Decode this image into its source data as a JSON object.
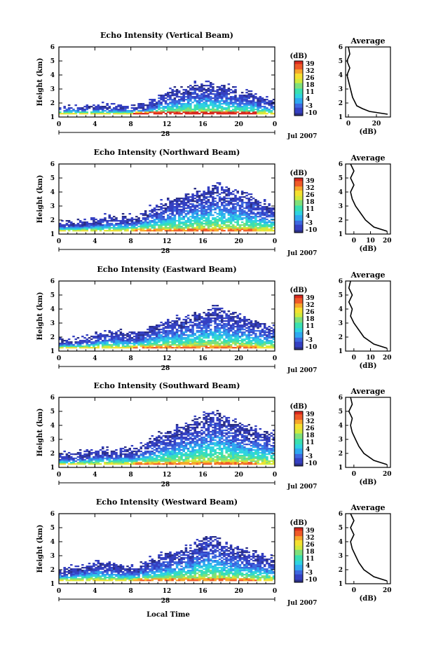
{
  "figure": {
    "xlabel": "Local Time",
    "colorbar_label": "(dB)",
    "colorbar_ticks": [
      "39",
      "32",
      "26",
      "18",
      "11",
      "4",
      "-3",
      "-10"
    ],
    "colorbar_range": [
      -10,
      39
    ],
    "average_title": "Average",
    "average_xlabel": "(dB)",
    "height_label": "Height (km)",
    "date_label": "Jul 2007",
    "day_label": "28",
    "x_ticks": [
      "0",
      "4",
      "8",
      "12",
      "16",
      "20",
      "0"
    ],
    "y_ticks": [
      "1",
      "2",
      "3",
      "4",
      "5",
      "6"
    ],
    "palette": [
      "#2b2f86",
      "#3540c2",
      "#3d68e0",
      "#2fa8f0",
      "#2fd3e0",
      "#3ae0b0",
      "#7fe07a",
      "#d0ea3c",
      "#f5e030",
      "#f7a62a",
      "#ef5a28",
      "#d8281e"
    ]
  },
  "chart_data": [
    {
      "type": "heatmap",
      "title": "Echo Intensity (Vertical Beam)",
      "xlabel": "Local Time",
      "ylabel": "Height (km)",
      "xlim": [
        0,
        24
      ],
      "ylim": [
        1,
        6
      ],
      "envelope_top_km": [
        1.3,
        1.4,
        1.5,
        1.5,
        1.6,
        1.6,
        1.5,
        1.4,
        1.5,
        1.7,
        2.0,
        2.4,
        2.7,
        2.8,
        3.0,
        3.2,
        3.2,
        3.0,
        3.0,
        2.8,
        2.6,
        2.5,
        2.2,
        2.0,
        2.0
      ],
      "peak_dB": 39,
      "average_profile": {
        "title": "Average",
        "xlabel": "(dB)",
        "xticks": [
          "0",
          "20"
        ],
        "xlim": [
          -2,
          30
        ],
        "height_km": [
          1.2,
          1.4,
          1.6,
          1.8,
          2.0,
          2.4,
          2.8,
          3.2,
          3.6,
          4.0,
          4.5,
          5.0,
          5.5,
          6.0
        ],
        "dB": [
          28,
          15,
          10,
          6,
          5,
          3,
          2,
          1,
          0,
          -1,
          1,
          -1,
          1,
          0
        ]
      }
    },
    {
      "type": "heatmap",
      "title": "Echo Intensity (Northward Beam)",
      "xlabel": "Local Time",
      "ylabel": "Height (km)",
      "xlim": [
        0,
        24
      ],
      "ylim": [
        1,
        6
      ],
      "envelope_top_km": [
        1.6,
        1.7,
        1.7,
        1.8,
        1.9,
        2.0,
        2.0,
        2.0,
        2.1,
        2.4,
        2.7,
        3.0,
        3.2,
        3.4,
        3.6,
        3.8,
        4.0,
        4.2,
        4.0,
        3.8,
        3.6,
        3.4,
        3.0,
        2.8,
        2.6
      ],
      "peak_dB": 26,
      "average_profile": {
        "title": "Average",
        "xlabel": "(dB)",
        "xticks": [
          "0",
          "10",
          "20"
        ],
        "xlim": [
          -5,
          22
        ],
        "height_km": [
          1.2,
          1.5,
          2.0,
          2.5,
          3.0,
          3.5,
          4.0,
          4.5,
          5.0,
          5.5,
          6.0
        ],
        "dB": [
          20,
          12,
          7,
          4,
          1,
          -1,
          -2,
          0,
          -2,
          0,
          -2
        ]
      }
    },
    {
      "type": "heatmap",
      "title": "Echo Intensity (Eastward Beam)",
      "xlabel": "Local Time",
      "ylabel": "Height (km)",
      "xlim": [
        0,
        24
      ],
      "ylim": [
        1,
        6
      ],
      "envelope_top_km": [
        1.6,
        1.6,
        1.7,
        1.8,
        2.0,
        2.2,
        2.2,
        2.0,
        2.0,
        2.3,
        2.6,
        2.9,
        3.0,
        3.1,
        3.2,
        3.4,
        3.6,
        3.8,
        3.6,
        3.4,
        3.2,
        3.0,
        2.8,
        2.6,
        2.6
      ],
      "peak_dB": 26,
      "average_profile": {
        "title": "Average",
        "xlabel": "(dB)",
        "xticks": [
          "0",
          "10",
          "20"
        ],
        "xlim": [
          -5,
          22
        ],
        "height_km": [
          1.2,
          1.5,
          2.0,
          2.5,
          3.0,
          3.5,
          4.0,
          4.5,
          5.0,
          5.5,
          6.0
        ],
        "dB": [
          20,
          12,
          6,
          3,
          0,
          -2,
          -1,
          -3,
          -1,
          -3,
          -2
        ]
      }
    },
    {
      "type": "heatmap",
      "title": "Echo Intensity (Southward Beam)",
      "xlabel": "Local Time",
      "ylabel": "Height (km)",
      "xlim": [
        0,
        24
      ],
      "ylim": [
        1,
        6
      ],
      "envelope_top_km": [
        1.7,
        1.7,
        1.8,
        1.9,
        2.0,
        2.0,
        2.0,
        2.0,
        2.1,
        2.5,
        2.8,
        3.1,
        3.4,
        3.6,
        3.9,
        4.2,
        4.6,
        4.8,
        4.4,
        4.0,
        3.8,
        3.6,
        3.4,
        3.2,
        3.0
      ],
      "peak_dB": 26,
      "average_profile": {
        "title": "Average",
        "xlabel": "(dB)",
        "xticks": [
          "0",
          "20"
        ],
        "xlim": [
          -5,
          22
        ],
        "height_km": [
          1.2,
          1.5,
          2.0,
          2.5,
          3.0,
          3.5,
          4.0,
          4.5,
          5.0,
          5.5,
          6.0
        ],
        "dB": [
          20,
          12,
          6,
          3,
          1,
          -1,
          -2,
          -1,
          -3,
          -1,
          -2
        ]
      }
    },
    {
      "type": "heatmap",
      "title": "Echo Intensity (Westward Beam)",
      "xlabel": "Local Time",
      "ylabel": "Height (km)",
      "xlim": [
        0,
        24
      ],
      "ylim": [
        1,
        6
      ],
      "envelope_top_km": [
        1.8,
        1.9,
        2.1,
        2.2,
        2.3,
        2.2,
        2.1,
        2.0,
        2.0,
        2.3,
        2.6,
        2.8,
        3.0,
        3.2,
        3.4,
        3.8,
        4.2,
        4.0,
        3.6,
        3.4,
        3.2,
        3.0,
        2.8,
        2.6,
        2.6
      ],
      "peak_dB": 26,
      "average_profile": {
        "title": "Average",
        "xlabel": "(dB)",
        "xticks": [
          "0",
          "20"
        ],
        "xlim": [
          -5,
          22
        ],
        "height_km": [
          1.2,
          1.5,
          2.0,
          2.5,
          3.0,
          3.5,
          4.0,
          4.5,
          5.0,
          5.5,
          6.0
        ],
        "dB": [
          20,
          12,
          6,
          3,
          1,
          -1,
          -2,
          0,
          -2,
          0,
          -2
        ]
      }
    }
  ]
}
